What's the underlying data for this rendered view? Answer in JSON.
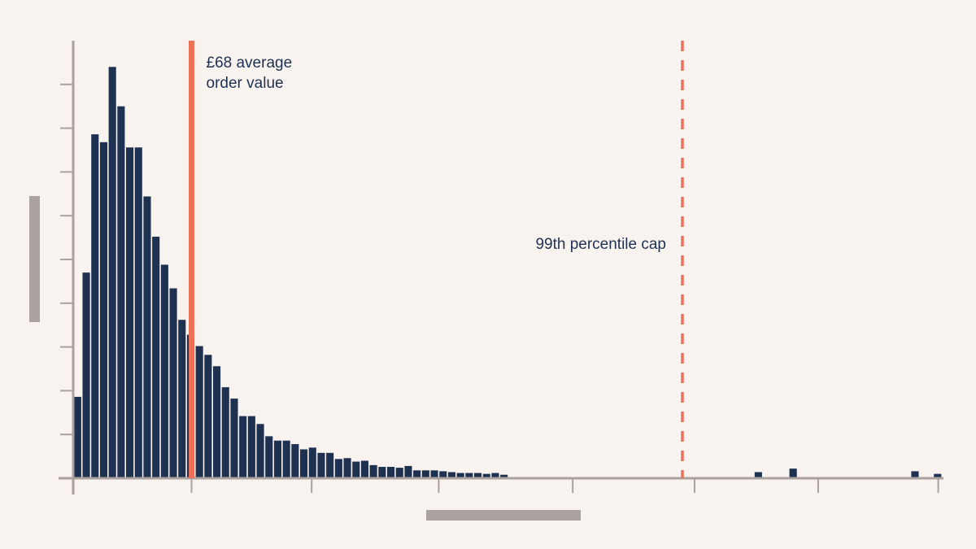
{
  "chart_data": {
    "type": "bar",
    "title": "",
    "xlabel": "",
    "ylabel": "",
    "xlim": [
      0,
      500
    ],
    "ylim": [
      0,
      500
    ],
    "bin_width": 5,
    "bins_start": [
      0,
      5,
      10,
      15,
      20,
      25,
      30,
      35,
      40,
      45,
      50,
      55,
      60,
      65,
      70,
      75,
      80,
      85,
      90,
      95,
      100,
      105,
      110,
      115,
      120,
      125,
      130,
      135,
      140,
      145,
      150,
      155,
      160,
      165,
      170,
      175,
      180,
      185,
      190,
      195,
      200,
      205,
      210,
      215,
      220,
      225,
      230,
      235,
      240,
      245,
      250,
      255,
      260,
      265,
      270,
      275,
      280,
      285,
      290,
      295,
      300,
      305,
      310,
      315,
      320,
      325,
      330,
      335,
      340,
      345,
      350,
      355,
      360,
      365,
      370,
      375,
      380,
      385,
      390,
      395,
      400,
      405,
      410,
      415,
      420,
      425,
      430,
      435,
      440,
      445,
      450,
      455,
      460,
      465,
      470,
      475,
      480,
      485,
      490,
      495
    ],
    "values": [
      93,
      235,
      393,
      384,
      470,
      425,
      378,
      378,
      322,
      276,
      244,
      217,
      181,
      164,
      151,
      141,
      128,
      104,
      91,
      71,
      71,
      62,
      48,
      43,
      43,
      39,
      33,
      35,
      29,
      29,
      22,
      23,
      19,
      20,
      15,
      13,
      13,
      12,
      14,
      9,
      9,
      9,
      8,
      7,
      6,
      6,
      6,
      5,
      6,
      4,
      0,
      0,
      0,
      0,
      0,
      0,
      0,
      0,
      0,
      0,
      0,
      0,
      0,
      0,
      0,
      0,
      0,
      0,
      0,
      0,
      0,
      0,
      0,
      0,
      0,
      0,
      0,
      0,
      0,
      0,
      0,
      0,
      0,
      0,
      0,
      0,
      0,
      0,
      0,
      0,
      0,
      0,
      0,
      0,
      0,
      0,
      0,
      0,
      0,
      0
    ],
    "outliers": [
      {
        "x": 394,
        "value": 7
      },
      {
        "x": 414,
        "value": 11
      },
      {
        "x": 484,
        "value": 8
      },
      {
        "x": 497,
        "value": 5
      }
    ],
    "reference_lines": [
      {
        "x": 68,
        "label_lines": [
          "£68 average",
          "order value"
        ],
        "style": "solid",
        "color": "#ec7156"
      },
      {
        "x": 350,
        "label_lines": [
          "99th percentile cap"
        ],
        "style": "dashed",
        "color": "#ec7156"
      }
    ],
    "x_tick_values": [
      0,
      68,
      137,
      210,
      287,
      357,
      428,
      497
    ],
    "y_tick_values": [
      0,
      50,
      100,
      150,
      200,
      250,
      300,
      350,
      400,
      450
    ],
    "axis_label_placeholders": true,
    "colors": {
      "bar": "#1f3150",
      "reference": "#ec7156",
      "axis": "#a9a29f",
      "background": "#f9f3ef"
    },
    "grid": false,
    "legend": "none"
  }
}
